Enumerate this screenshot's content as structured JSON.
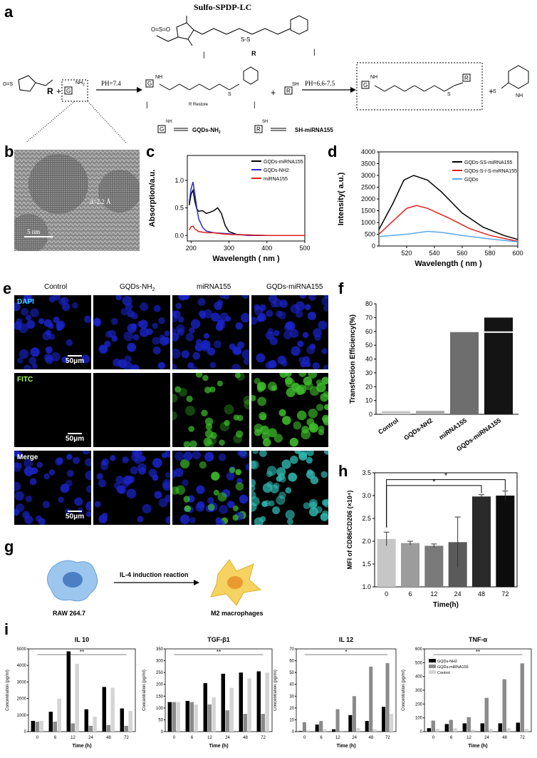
{
  "panels": {
    "a": "a",
    "b": "b",
    "c": "c",
    "d": "d",
    "e": "e",
    "f": "f",
    "g": "g",
    "h": "h",
    "i": "i"
  },
  "scheme": {
    "title": "Sulfo-SPDP-LC",
    "ph1": "PH=7.4",
    "ph2": "PH=6.6-7.5",
    "r": "R",
    "g": "G",
    "nh2": "NH",
    "nh2_sub": "2",
    "sh": "SH",
    "r_restore": "R Restore",
    "legend_g": "GQDs-NH",
    "legend_g_sub": "2",
    "legend_r": "SH-miRNA155",
    "plus": "+",
    "bar": "|",
    "nh": "NH",
    "s": "S"
  },
  "tem": {
    "lattice": "d=2.2 Å",
    "scale": "5 nm"
  },
  "microscopy": {
    "columns": [
      "Control",
      "GQDs-NH",
      "miRNA155",
      "GQDs-miRNA155"
    ],
    "col_sub": "2",
    "rows": [
      "DAPI",
      "FITC",
      "Merge"
    ],
    "scale": "50μm",
    "colors": {
      "dapi": "#1a24c8",
      "fitc": "#3fbf2c",
      "merge_teal": "#2fb8b0"
    }
  },
  "g_scheme": {
    "arrow_label": "IL-4 induction reaction",
    "left": "RAW 264.7",
    "right": "M2 macrophages"
  },
  "charts": {
    "c": {
      "xlabel": "Wavelength ( nm )",
      "ylabel": "Absorption/a.u.",
      "xticks": [
        "200",
        "300",
        "400",
        "500"
      ],
      "yticks": [
        "0.0",
        "0.5",
        "1.0"
      ],
      "legend": [
        "GQDs-miRNA155",
        "GQDs-NH2",
        "miRNA155"
      ]
    },
    "d": {
      "xlabel": "Wavelength ( nm )",
      "ylabel": "Intensity( a.u.)",
      "xticks": [
        "520",
        "540",
        "560",
        "580",
        "600"
      ],
      "yticks": [
        "0",
        "500",
        "1000",
        "1500",
        "2000",
        "2500",
        "3000",
        "3500",
        "4000"
      ],
      "legend": [
        "GQDs-SS-miRNA155",
        "GQDs-S-/-S-miRNA155",
        "GQDs"
      ]
    },
    "f": {
      "ylabel": "Transfection Efficiency(%)",
      "yticks": [
        "0",
        "10",
        "20",
        "30",
        "40",
        "50",
        "60",
        "70",
        "80"
      ],
      "categories": [
        "Control",
        "GQDs-NH2",
        "miRNA155",
        "GQDs-miRNA155"
      ]
    },
    "h": {
      "ylabel": "MFI of CD86/CD206 (×10⁴)",
      "xlabel": "Time(h)",
      "yticks": [
        "1.0",
        "1.5",
        "2.0",
        "2.5",
        "3.0",
        "3.5"
      ],
      "categories": [
        "0",
        "6",
        "12",
        "24",
        "48",
        "72"
      ],
      "sig": "*"
    },
    "i1": {
      "title": "IL 10",
      "ylabel": "Concentration (pg/ml)",
      "xlabel": "Time (h)",
      "yticks": [
        "0",
        "1000",
        "2000",
        "3000",
        "4000",
        "5000"
      ],
      "sig": "**"
    },
    "i2": {
      "title": "TGF-β1",
      "ylabel": "Concentration (pg/ml)",
      "xlabel": "Time (h)",
      "yticks": [
        "0",
        "50",
        "100",
        "150",
        "200",
        "250",
        "300",
        "350"
      ],
      "sig": "**"
    },
    "i3": {
      "title": "IL 12",
      "ylabel": "Concentration (pg/ml)",
      "xlabel": "Time (h)",
      "yticks": [
        "0",
        "10",
        "20",
        "30",
        "40",
        "50",
        "60",
        "70"
      ],
      "sig": "*"
    },
    "i4": {
      "title": "TNF-α",
      "ylabel": "Concentration (pg/ml)",
      "xlabel": "Time (h)",
      "yticks": [
        "0",
        "100",
        "200",
        "300",
        "400",
        "500",
        "600"
      ],
      "sig": "**",
      "legend": [
        "GQDs-NH2",
        "GQDs-miRNA155",
        "Control"
      ]
    },
    "i_xticks": [
      "0",
      "6",
      "12",
      "24",
      "48",
      "72"
    ]
  },
  "chart_data": [
    {
      "type": "line",
      "id": "c",
      "x_range": [
        190,
        500
      ],
      "ylim": [
        -0.1,
        1.45
      ],
      "series": [
        {
          "name": "GQDs-miRNA155",
          "color": "#000000",
          "points": [
            [
              195,
              0.55
            ],
            [
              200,
              0.75
            ],
            [
              205,
              0.82
            ],
            [
              210,
              0.62
            ],
            [
              215,
              0.48
            ],
            [
              220,
              0.44
            ],
            [
              230,
              0.45
            ],
            [
              240,
              0.4
            ],
            [
              250,
              0.42
            ],
            [
              260,
              0.45
            ],
            [
              270,
              0.5
            ],
            [
              280,
              0.4
            ],
            [
              290,
              0.18
            ],
            [
              300,
              0.07
            ],
            [
              320,
              0.02
            ],
            [
              350,
              0.01
            ],
            [
              400,
              0.0
            ],
            [
              500,
              0.0
            ]
          ]
        },
        {
          "name": "GQDs-NH2",
          "color": "#2a2acc",
          "points": [
            [
              195,
              0.6
            ],
            [
              200,
              0.85
            ],
            [
              205,
              0.97
            ],
            [
              210,
              0.75
            ],
            [
              215,
              0.5
            ],
            [
              220,
              0.3
            ],
            [
              230,
              0.15
            ],
            [
              240,
              0.08
            ],
            [
              260,
              0.05
            ],
            [
              300,
              0.03
            ],
            [
              350,
              0.0
            ],
            [
              400,
              0.0
            ],
            [
              500,
              0.0
            ]
          ]
        },
        {
          "name": "miRNA155",
          "color": "#e02020",
          "points": [
            [
              195,
              0.1
            ],
            [
              200,
              0.16
            ],
            [
              205,
              0.17
            ],
            [
              210,
              0.12
            ],
            [
              220,
              0.07
            ],
            [
              240,
              0.05
            ],
            [
              260,
              0.05
            ],
            [
              280,
              0.03
            ],
            [
              300,
              0.02
            ],
            [
              350,
              0.01
            ],
            [
              400,
              0.0
            ],
            [
              500,
              0.0
            ]
          ]
        }
      ]
    },
    {
      "type": "line",
      "id": "d",
      "x_range": [
        500,
        600
      ],
      "ylim": [
        0,
        4000
      ],
      "series": [
        {
          "name": "GQDs-SS-miRNA155",
          "color": "#000000",
          "points": [
            [
              500,
              700
            ],
            [
              510,
              1800
            ],
            [
              518,
              2800
            ],
            [
              525,
              3000
            ],
            [
              535,
              2800
            ],
            [
              545,
              2300
            ],
            [
              560,
              1400
            ],
            [
              575,
              800
            ],
            [
              590,
              450
            ],
            [
              600,
              280
            ]
          ]
        },
        {
          "name": "GQDs-S-/-S-miRNA155",
          "color": "#e02020",
          "points": [
            [
              500,
              500
            ],
            [
              510,
              1050
            ],
            [
              520,
              1600
            ],
            [
              527,
              1720
            ],
            [
              535,
              1600
            ],
            [
              550,
              1200
            ],
            [
              565,
              750
            ],
            [
              580,
              450
            ],
            [
              600,
              200
            ]
          ]
        },
        {
          "name": "GQDs",
          "color": "#5aa8e8",
          "points": [
            [
              500,
              400
            ],
            [
              520,
              500
            ],
            [
              535,
              620
            ],
            [
              545,
              580
            ],
            [
              560,
              450
            ],
            [
              580,
              300
            ],
            [
              600,
              180
            ]
          ]
        }
      ]
    },
    {
      "type": "bar",
      "id": "f",
      "ylim": [
        0,
        80
      ],
      "categories": [
        "Control",
        "GQDs-NH2",
        "miRNA155",
        "GQDs-miRNA155"
      ],
      "values": [
        2.3,
        2.5,
        59.5,
        70
      ],
      "colors": [
        "#c8c8c8",
        "#a9a9a9",
        "#6e6e6e",
        "#141414"
      ]
    },
    {
      "type": "bar",
      "id": "h",
      "ylim": [
        1.0,
        3.5
      ],
      "categories": [
        "0",
        "6",
        "12",
        "24",
        "48",
        "72"
      ],
      "values": [
        2.05,
        1.96,
        1.9,
        1.98,
        2.98,
        3.0
      ],
      "errors": [
        0.15,
        0.04,
        0.04,
        0.55,
        0.04,
        0.1
      ],
      "colors": [
        "#c6c6c6",
        "#9c9c9c",
        "#7a7a7a",
        "#5a5a5a",
        "#2a2a2a",
        "#0c0c0c"
      ]
    },
    {
      "type": "bar",
      "id": "i1",
      "ylim": [
        0,
        5000
      ],
      "categories": [
        "0",
        "6",
        "12",
        "24",
        "48",
        "72"
      ],
      "series": [
        {
          "values": [
            650,
            1200,
            4850,
            1350,
            2700,
            1400
          ]
        },
        {
          "values": [
            600,
            600,
            500,
            350,
            400,
            350
          ]
        },
        {
          "values": [
            650,
            2000,
            4100,
            900,
            2650,
            1250
          ]
        }
      ]
    },
    {
      "type": "bar",
      "id": "i2",
      "ylim": [
        0,
        350
      ],
      "categories": [
        "0",
        "6",
        "12",
        "24",
        "48",
        "72"
      ],
      "series": [
        {
          "values": [
            125,
            130,
            205,
            245,
            250,
            255
          ]
        },
        {
          "values": [
            125,
            125,
            115,
            90,
            75,
            75
          ]
        },
        {
          "values": [
            125,
            115,
            145,
            185,
            225,
            250
          ]
        }
      ]
    },
    {
      "type": "bar",
      "id": "i3",
      "ylim": [
        0,
        70
      ],
      "categories": [
        "0",
        "6",
        "12",
        "24",
        "48",
        "72"
      ],
      "series": [
        {
          "values": [
            0.5,
            6,
            2,
            14,
            9,
            21
          ]
        },
        {
          "values": [
            8,
            9,
            19,
            30,
            55,
            58
          ]
        },
        {
          "values": [
            1,
            2,
            1,
            3,
            2,
            15
          ]
        }
      ]
    },
    {
      "type": "bar",
      "id": "i4",
      "ylim": [
        0,
        600
      ],
      "categories": [
        "0",
        "6",
        "12",
        "24",
        "48",
        "72"
      ],
      "series": [
        {
          "name": "GQDs-NH2",
          "values": [
            25,
            55,
            60,
            60,
            60,
            65
          ]
        },
        {
          "name": "GQDs-miRNA155",
          "values": [
            80,
            85,
            105,
            245,
            380,
            495
          ]
        },
        {
          "name": "Control",
          "values": [
            20,
            25,
            15,
            20,
            25,
            20
          ]
        }
      ]
    }
  ]
}
